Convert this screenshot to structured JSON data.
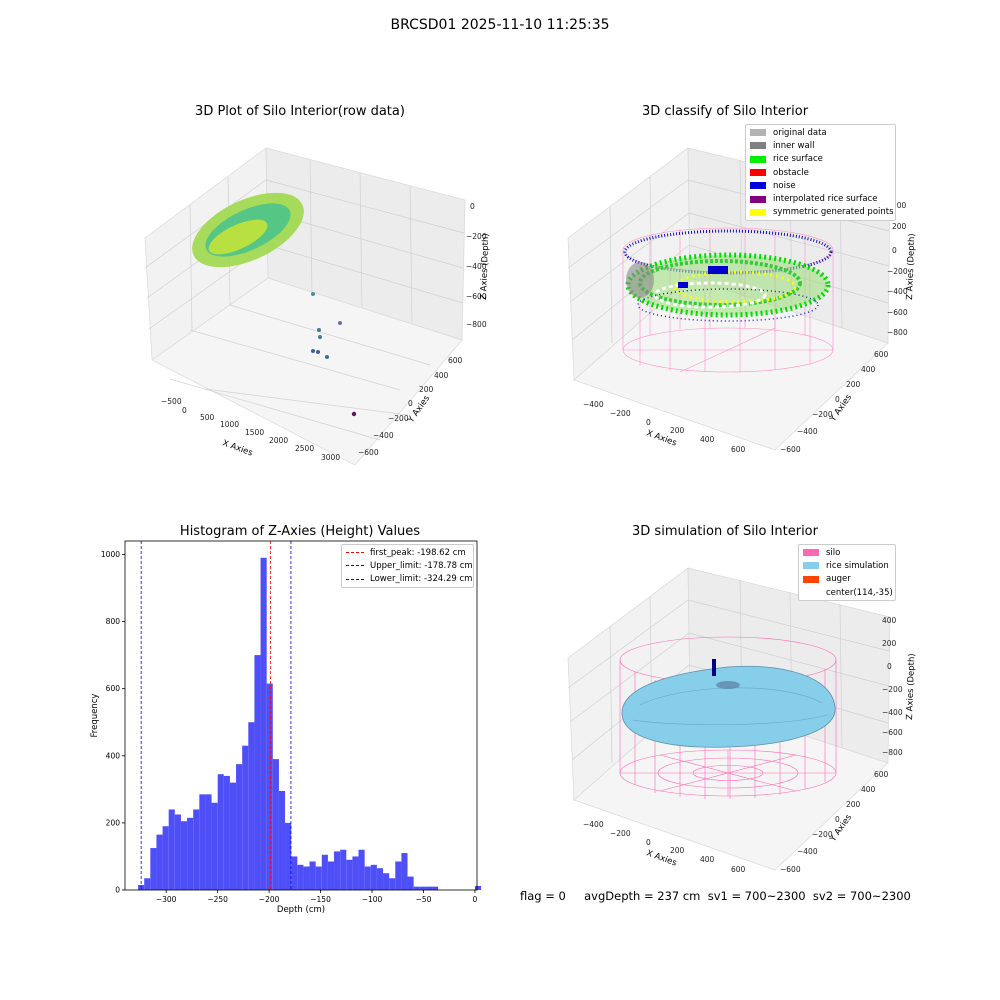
{
  "suptitle": "BRCSD01 2025-11-10 11:25:35",
  "panels": {
    "raw": {
      "title": "3D Plot of Silo Interior(row data)",
      "xlabel": "X Axies",
      "ylabel": "Y Axies",
      "zlabel": "Z Axies (Depth)",
      "xticks": [
        "−500",
        "0",
        "500",
        "1000",
        "1500",
        "2000",
        "2500",
        "3000"
      ],
      "yticks": [
        "600",
        "400",
        "200",
        "0",
        "−200",
        "−400",
        "−600"
      ],
      "zticks": [
        "0",
        "−200",
        "−400",
        "−600",
        "−800"
      ]
    },
    "classify": {
      "title": "3D classify of Silo Interior",
      "xlabel": "X Axies",
      "ylabel": "Y Axies",
      "zlabel": "Z Axies (Depth)",
      "xticks": [
        "−400",
        "−200",
        "0",
        "200",
        "400",
        "600"
      ],
      "yticks": [
        "600",
        "400",
        "200",
        "0",
        "−200",
        "−400",
        "−600"
      ],
      "zticks": [
        "200",
        "0",
        "−200",
        "−400",
        "−600",
        "−800"
      ],
      "legend": [
        {
          "label": "original data",
          "color": "#b3b3b3"
        },
        {
          "label": "inner wall",
          "color": "#808080"
        },
        {
          "label": "rice surface",
          "color": "#00ee00"
        },
        {
          "label": "obstacle",
          "color": "#ff0000"
        },
        {
          "label": "noise",
          "color": "#0000dd"
        },
        {
          "label": "interpolated rice surface",
          "color": "#800080"
        },
        {
          "label": "symmetric generated points",
          "color": "#ffff00"
        }
      ]
    },
    "simulation": {
      "title": "3D simulation of Silo Interior",
      "xlabel": "X Axies",
      "ylabel": "Y Axies",
      "zlabel": "Z Axies (Depth)",
      "xticks": [
        "−400",
        "−200",
        "0",
        "200",
        "400",
        "600"
      ],
      "yticks": [
        "600",
        "400",
        "200",
        "0",
        "−200",
        "−400",
        "−600"
      ],
      "zticks": [
        "400",
        "200",
        "0",
        "−200",
        "−400",
        "−600",
        "−800"
      ],
      "legend": [
        {
          "label": "silo",
          "color": "#ff69b4"
        },
        {
          "label": "rice simulation",
          "color": "#87ceeb"
        },
        {
          "label": "auger",
          "color": "#ff4500"
        },
        {
          "label": "center(114,-35)",
          "color": ""
        }
      ]
    }
  },
  "footer": "flag = 0     avgDepth = 237 cm  sv1 = 700~2300  sv2 = 700~2300",
  "chart_data": {
    "type": "bar",
    "title": "Histogram of Z-Axies (Height) Values",
    "xlabel": "Depth (cm)",
    "ylabel": "Frequency",
    "xlim": [
      -340,
      2
    ],
    "ylim": [
      0,
      1040
    ],
    "xticks": [
      -300,
      -250,
      -200,
      -150,
      -100,
      -50,
      0
    ],
    "yticks": [
      0,
      200,
      400,
      600,
      800,
      1000
    ],
    "bin_width": 5.95,
    "bins_left": [
      -327.3,
      -321.35,
      -315.4,
      -309.45,
      -303.5,
      -297.55,
      -291.6,
      -285.65,
      -279.7,
      -273.75,
      -267.8,
      -261.85,
      -255.9,
      -249.95,
      -244.0,
      -238.05,
      -232.1,
      -226.15,
      -220.2,
      -214.25,
      -208.3,
      -202.35,
      -196.4,
      -190.45,
      -184.5,
      -178.55,
      -172.6,
      -166.65,
      -160.7,
      -154.75,
      -148.8,
      -142.85,
      -136.9,
      -130.95,
      -125.0,
      -119.05,
      -113.1,
      -107.15,
      -101.2,
      -95.25,
      -89.3,
      -83.35,
      -77.4,
      -71.45,
      -65.5,
      -59.55,
      -53.6,
      -47.65,
      -41.7,
      -35.75,
      -29.8,
      -23.85,
      -17.9,
      -11.95,
      -6.0,
      0.0
    ],
    "values": [
      15,
      35,
      125,
      165,
      190,
      240,
      225,
      205,
      215,
      240,
      285,
      285,
      260,
      345,
      340,
      320,
      375,
      430,
      500,
      700,
      990,
      615,
      390,
      295,
      200,
      100,
      75,
      70,
      85,
      70,
      105,
      85,
      115,
      120,
      90,
      100,
      120,
      70,
      75,
      65,
      50,
      35,
      85,
      110,
      40,
      10,
      10,
      10,
      10,
      0,
      0,
      0,
      0,
      0,
      0,
      12
    ],
    "vlines": [
      {
        "name": "first_peak: -198.62 cm",
        "x": -198.62,
        "color": "#ff0000"
      },
      {
        "name": "Upper_limit: -178.78 cm",
        "x": -178.78,
        "color": "#0000ff"
      },
      {
        "name": "Lower_limit: -324.29 cm",
        "x": -324.29,
        "color": "#0000ff"
      }
    ],
    "bar_color": "#4f4ff7",
    "legend_position": "top-right"
  }
}
